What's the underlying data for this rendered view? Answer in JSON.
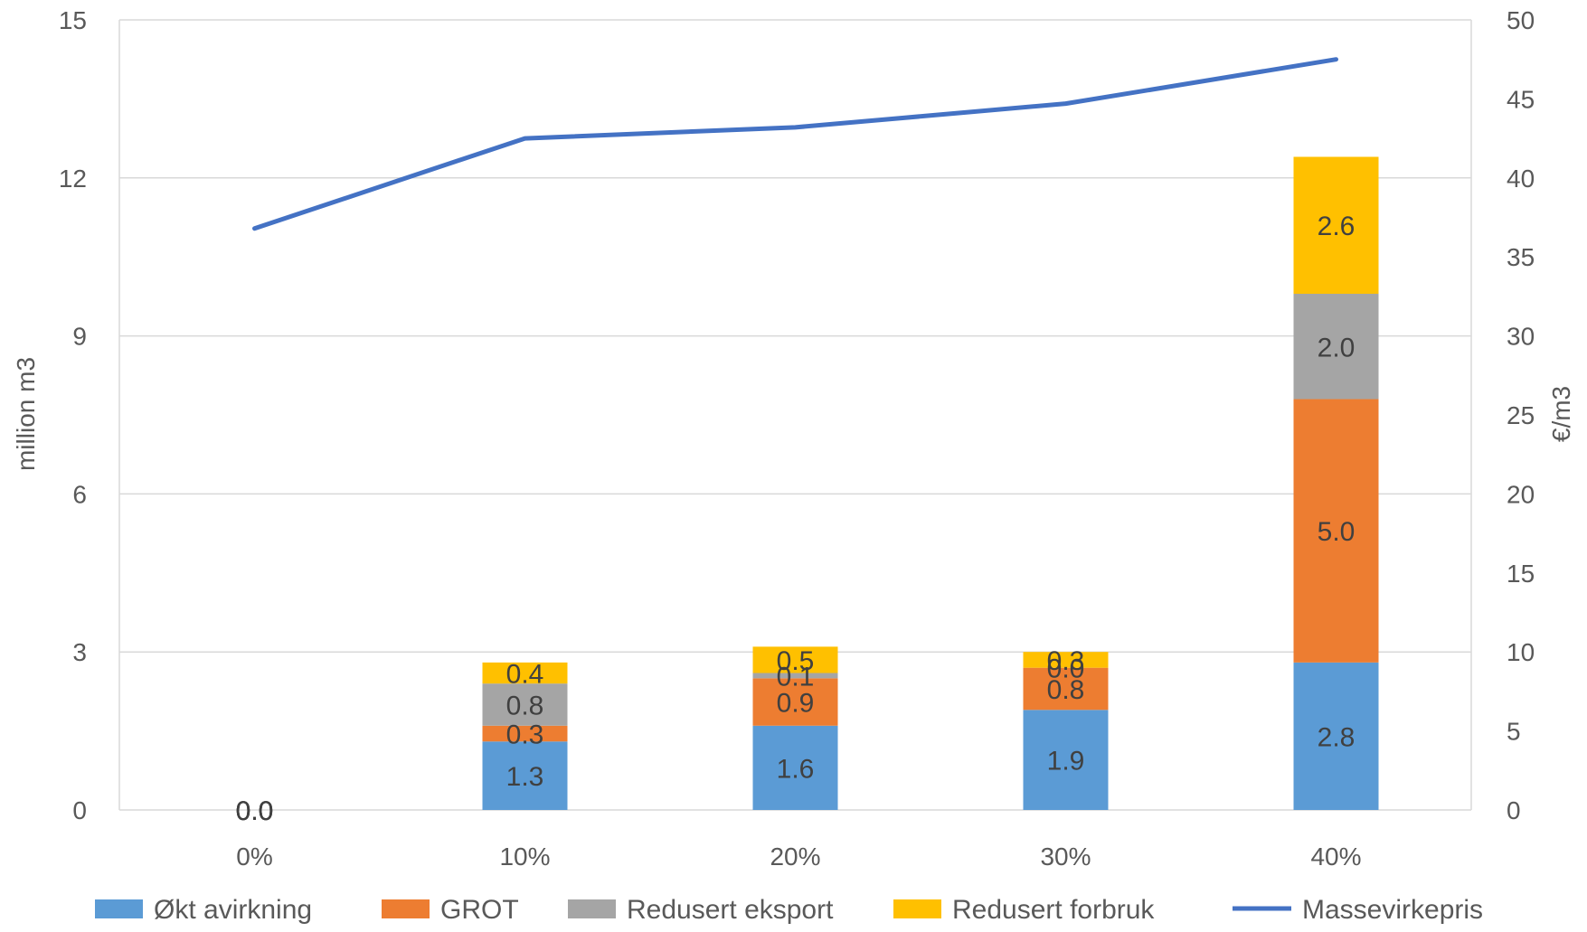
{
  "chart_data": {
    "type": "bar",
    "categories": [
      "0%",
      "10%",
      "20%",
      "30%",
      "40%"
    ],
    "series": [
      {
        "name": "Økt avirkning",
        "values": [
          0.0,
          1.3,
          1.6,
          1.9,
          2.8
        ],
        "color": "#5B9BD5"
      },
      {
        "name": "GROT",
        "values": [
          0.0,
          0.3,
          0.9,
          0.8,
          5.0
        ],
        "color": "#ED7D31"
      },
      {
        "name": "Redusert eksport",
        "values": [
          0.0,
          0.8,
          0.1,
          0.0,
          2.0
        ],
        "color": "#A5A5A5"
      },
      {
        "name": "Redusert forbruk",
        "values": [
          0.0,
          0.4,
          0.5,
          0.3,
          2.6
        ],
        "color": "#FFC000"
      }
    ],
    "line_series": {
      "name": "Massevirkepris",
      "values": [
        36.8,
        42.5,
        43.2,
        44.7,
        47.5
      ],
      "color": "#4472C4",
      "axis": "right"
    },
    "ylabel": "million m3",
    "y2label": "€/m3",
    "ylim": [
      0,
      15
    ],
    "y2lim": [
      0,
      50
    ],
    "yticks": [
      "0",
      "3",
      "6",
      "9",
      "12",
      "15"
    ],
    "y2ticks": [
      "0",
      "5",
      "10",
      "15",
      "20",
      "25",
      "30",
      "35",
      "40",
      "45",
      "50"
    ],
    "grid": true,
    "legend": "bottom"
  }
}
